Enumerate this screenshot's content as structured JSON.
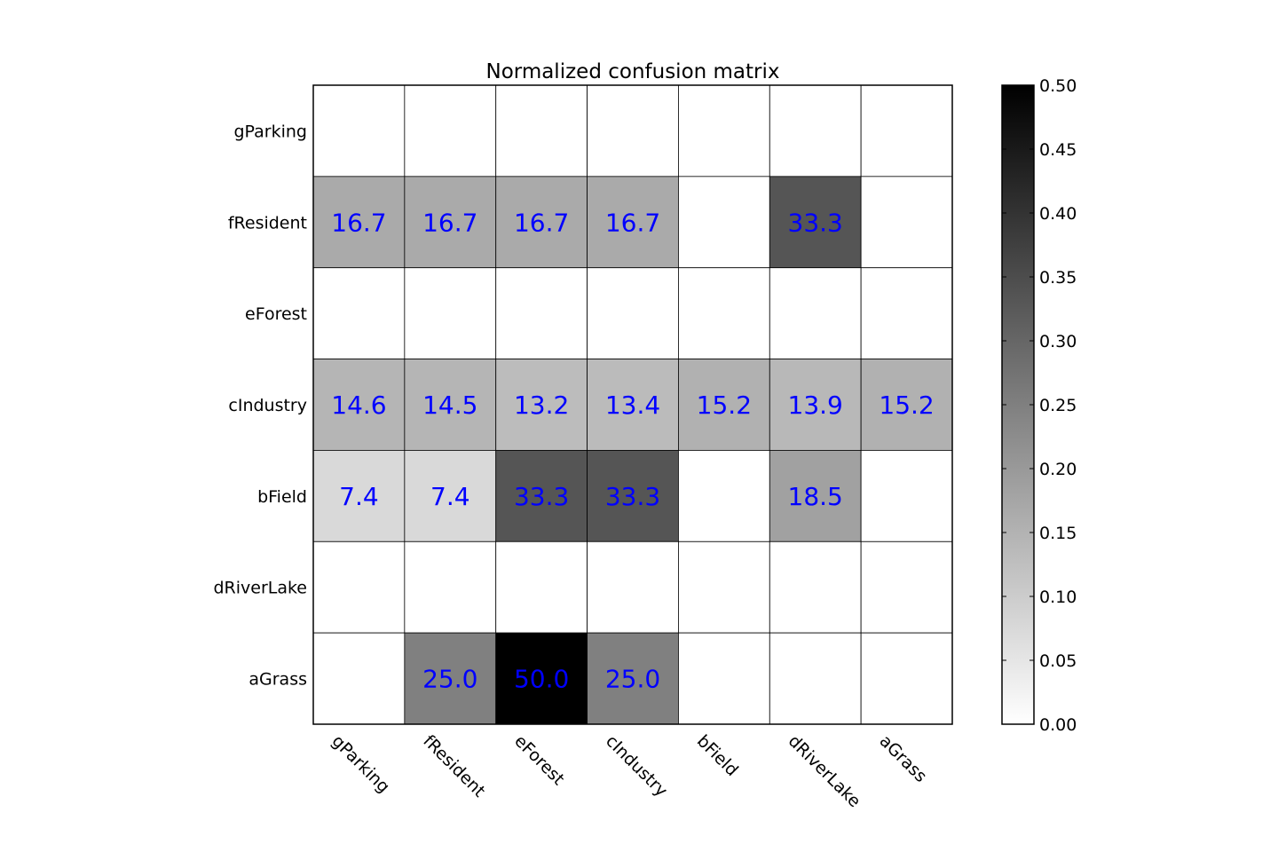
{
  "chart_data": {
    "type": "heatmap",
    "title": "Normalized confusion matrix",
    "xlabel": "",
    "ylabel": "",
    "x_categories": [
      "gParking",
      "fResident",
      "eForest",
      "cIndustry",
      "bField",
      "dRiverLake",
      "aGrass"
    ],
    "y_categories": [
      "gParking",
      "fResident",
      "eForest",
      "cIndustry",
      "bField",
      "dRiverLake",
      "aGrass"
    ],
    "values": [
      [
        0,
        0,
        0,
        0,
        0,
        0,
        0
      ],
      [
        0.167,
        0.167,
        0.167,
        0.167,
        0,
        0.333,
        0
      ],
      [
        0,
        0,
        0,
        0,
        0,
        0,
        0
      ],
      [
        0.146,
        0.145,
        0.132,
        0.134,
        0.152,
        0.139,
        0.152
      ],
      [
        0.074,
        0.074,
        0.333,
        0.333,
        0,
        0.185,
        0
      ],
      [
        0,
        0,
        0,
        0,
        0,
        0,
        0
      ],
      [
        0,
        0.25,
        0.5,
        0.25,
        0,
        0,
        0
      ]
    ],
    "cell_labels": [
      [
        "",
        "",
        "",
        "",
        "",
        "",
        ""
      ],
      [
        "16.7",
        "16.7",
        "16.7",
        "16.7",
        "",
        "33.3",
        ""
      ],
      [
        "",
        "",
        "",
        "",
        "",
        "",
        ""
      ],
      [
        "14.6",
        "14.5",
        "13.2",
        "13.4",
        "15.2",
        "13.9",
        "15.2"
      ],
      [
        "7.4",
        "7.4",
        "33.3",
        "33.3",
        "",
        "18.5",
        ""
      ],
      [
        "",
        "",
        "",
        "",
        "",
        "",
        ""
      ],
      [
        "",
        "25.0",
        "50.0",
        "25.0",
        "",
        "",
        ""
      ]
    ],
    "colormap": "gray_r",
    "vmin": 0,
    "vmax": 0.5,
    "colorbar_ticks": [
      "0.00",
      "0.05",
      "0.10",
      "0.15",
      "0.20",
      "0.25",
      "0.30",
      "0.35",
      "0.40",
      "0.45",
      "0.50"
    ],
    "colorbar_tick_values": [
      0,
      0.05,
      0.1,
      0.15,
      0.2,
      0.25,
      0.3,
      0.35,
      0.4,
      0.45,
      0.5
    ],
    "label_color": "#0000ff",
    "grid": true,
    "xtick_rotation_deg": 45
  }
}
